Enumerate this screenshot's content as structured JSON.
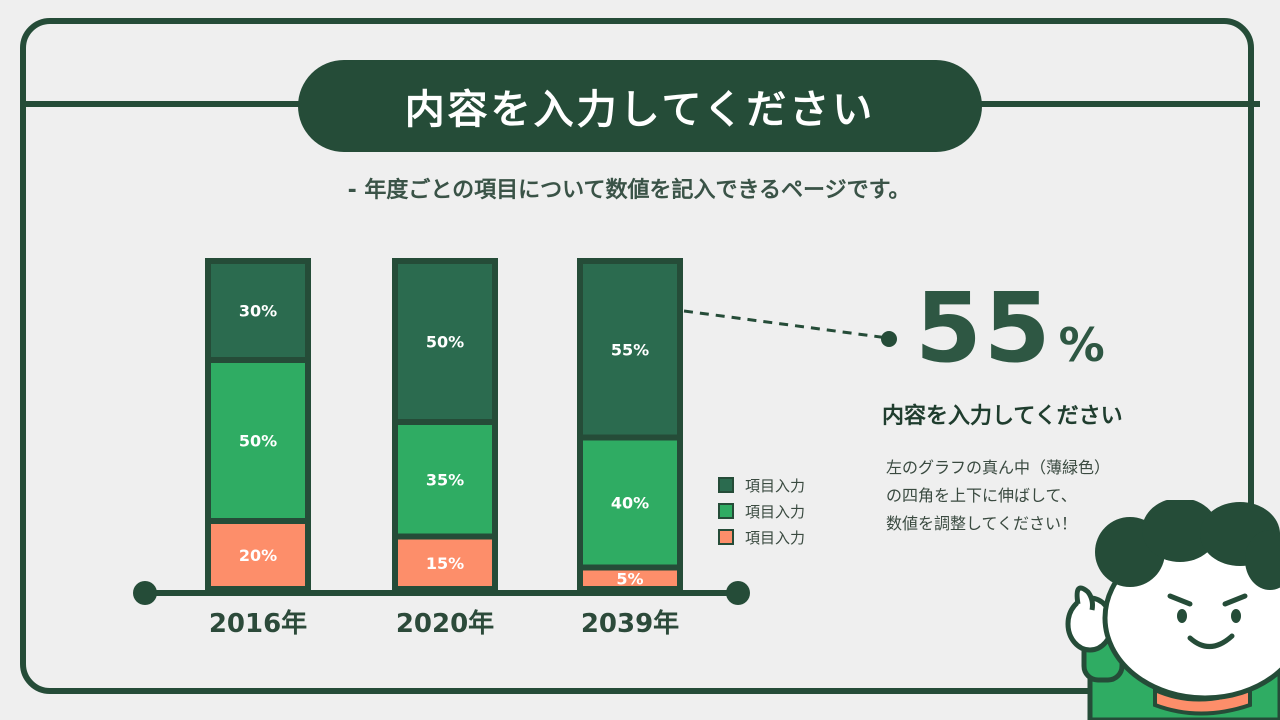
{
  "header": {
    "title": "内容を入力してください",
    "subtitle": "- 年度ごとの項目について数値を記入できるページです。"
  },
  "chart_data": {
    "type": "bar",
    "stacked": true,
    "categories": [
      "2016年",
      "2020年",
      "2039年"
    ],
    "series": [
      {
        "name": "項目入力",
        "color": "#2b6b4f",
        "values": [
          30,
          50,
          55
        ]
      },
      {
        "name": "項目入力",
        "color": "#2fac63",
        "values": [
          50,
          35,
          40
        ]
      },
      {
        "name": "項目入力",
        "color": "#fd8e6a",
        "values": [
          20,
          15,
          5
        ]
      }
    ],
    "value_labels": [
      [
        "30%",
        "50%",
        "55%"
      ],
      [
        "50%",
        "35%",
        "40%"
      ],
      [
        "20%",
        "15%",
        "5%"
      ]
    ],
    "legend_position": "right"
  },
  "legend": {
    "items": [
      {
        "label": "項目入力",
        "color": "#2b6b4f"
      },
      {
        "label": "項目入力",
        "color": "#2fac63"
      },
      {
        "label": "項目入力",
        "color": "#fd8e6a"
      }
    ]
  },
  "callout": {
    "value": "55",
    "unit": "%",
    "heading": "内容を入力してください",
    "lines": [
      "左のグラフの真ん中（薄緑色）",
      "の四角を上下に伸ばして、",
      "数値を調整してください！"
    ]
  },
  "colors": {
    "dark": "#254c38",
    "frame": "#254c38",
    "background": "#efefef"
  }
}
